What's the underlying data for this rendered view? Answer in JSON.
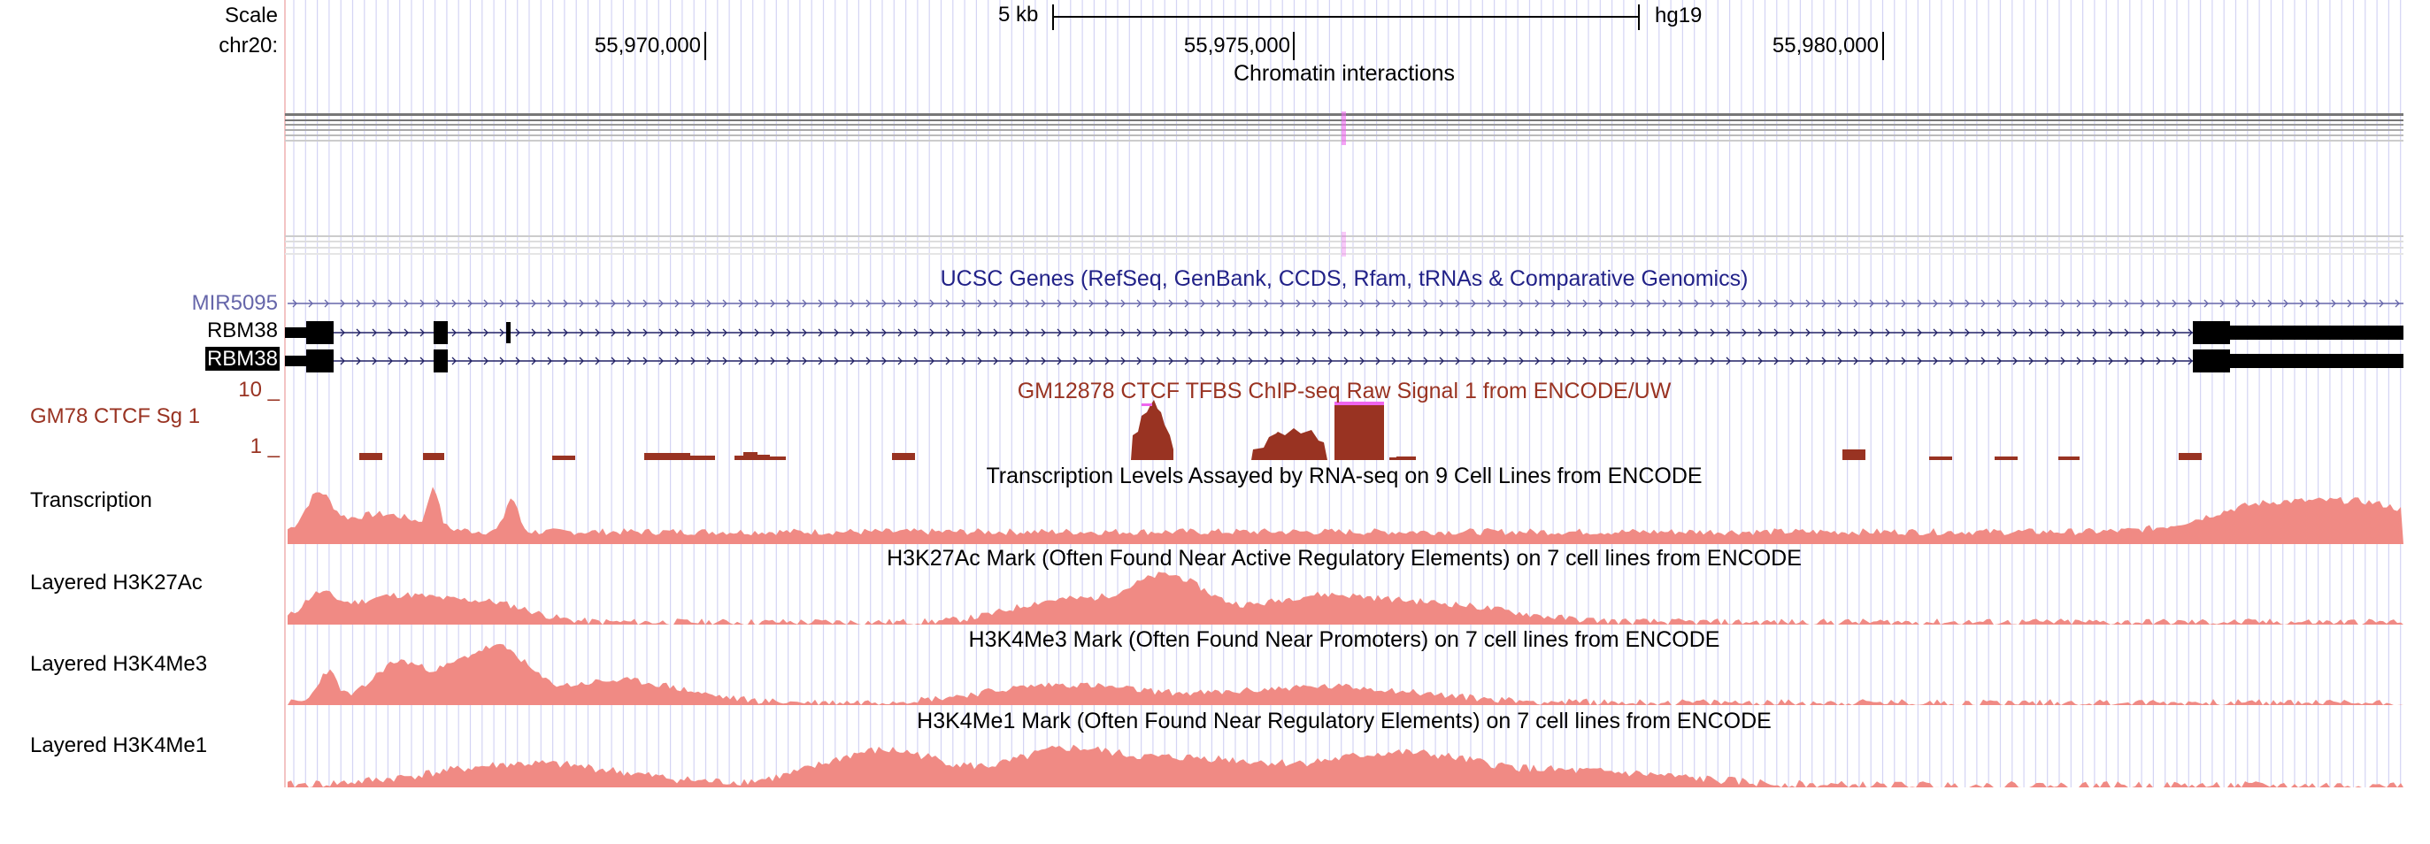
{
  "ruler": {
    "scale_label": "Scale",
    "chrom_label": "chr20:",
    "scale_bar_label": "5 kb",
    "assembly": "hg19",
    "ticks": [
      "55,970,000",
      "55,975,000",
      "55,980,000"
    ]
  },
  "tracks": {
    "chromatin": {
      "title": "Chromatin interactions"
    },
    "genes": {
      "title": "UCSC Genes (RefSeq, GenBank, CCDS, Rfam, tRNAs & Comparative Genomics)",
      "items": [
        {
          "label": "MIR5095",
          "color": "#6666aa",
          "selected": false
        },
        {
          "label": "RBM38",
          "color": "#000000",
          "selected": false
        },
        {
          "label": "RBM38",
          "color": "#000000",
          "selected": true
        }
      ]
    },
    "ctcf": {
      "title": "GM12878 CTCF TFBS ChIP-seq Raw Signal 1 from ENCODE/UW",
      "label": "GM78 CTCF Sg 1",
      "ymax": "10 _",
      "ymin": "1 _",
      "color": "#993322"
    },
    "transcription": {
      "title": "Transcription Levels Assayed by RNA-seq on 9 Cell Lines from ENCODE",
      "label": "Transcription"
    },
    "h3k27ac": {
      "title": "H3K27Ac Mark (Often Found Near Active Regulatory Elements) on 7 cell lines from ENCODE",
      "label": "Layered H3K27Ac"
    },
    "h3k4me3": {
      "title": "H3K4Me3 Mark (Often Found Near Promoters) on 7 cell lines from ENCODE",
      "label": "Layered H3K4Me3"
    },
    "h3k4me1": {
      "title": "H3K4Me1 Mark (Often Found Near Regulatory Elements) on 7 cell lines from ENCODE",
      "label": "Layered H3K4Me1"
    }
  },
  "colors": {
    "signal_fill": "#f08a84",
    "ctcf_fill": "#993322",
    "grid_line": "#d4d4f4",
    "highlight": "#ee66ee",
    "gene_title": "#222288"
  }
}
